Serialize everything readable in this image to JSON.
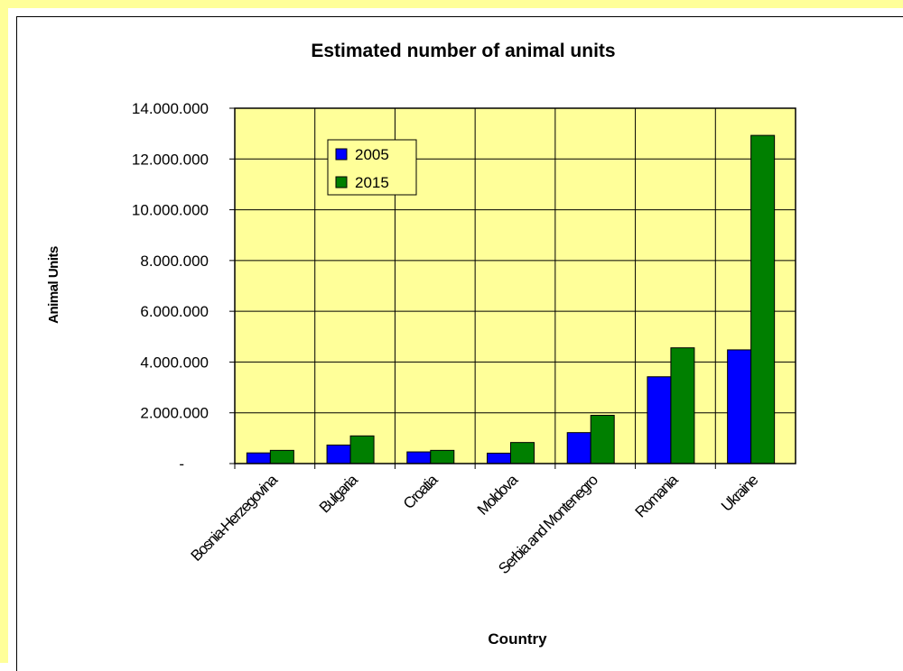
{
  "colors": {
    "outer_border": "#ffff99",
    "plot_background": "#ffff99",
    "series_2005": "#0000ff",
    "series_2015": "#007f00",
    "gridline": "#000000"
  },
  "chart_data": {
    "type": "bar",
    "title": "Estimated number of animal units",
    "xlabel": "Country",
    "ylabel": "Animal Units",
    "categories": [
      "Bosnia-Herzegovina",
      "Bulgaria",
      "Croatia",
      "Moldova",
      "Serbia and Montenegro",
      "Romania",
      "Ukraine"
    ],
    "series": [
      {
        "name": "2005",
        "values": [
          420000,
          730000,
          460000,
          410000,
          1220000,
          3420000,
          4480000
        ]
      },
      {
        "name": "2015",
        "values": [
          520000,
          1090000,
          520000,
          830000,
          1900000,
          4560000,
          12930000
        ]
      }
    ],
    "ylim": [
      0,
      14000000
    ],
    "y_ticks": [
      {
        "value": 0,
        "label": "-"
      },
      {
        "value": 2000000,
        "label": "2.000.000"
      },
      {
        "value": 4000000,
        "label": "4.000.000"
      },
      {
        "value": 6000000,
        "label": "6.000.000"
      },
      {
        "value": 8000000,
        "label": "8.000.000"
      },
      {
        "value": 10000000,
        "label": "10.000.000"
      },
      {
        "value": 12000000,
        "label": "12.000.000"
      },
      {
        "value": 14000000,
        "label": "14.000.000"
      }
    ],
    "grid": true,
    "legend_position": "top-left"
  }
}
